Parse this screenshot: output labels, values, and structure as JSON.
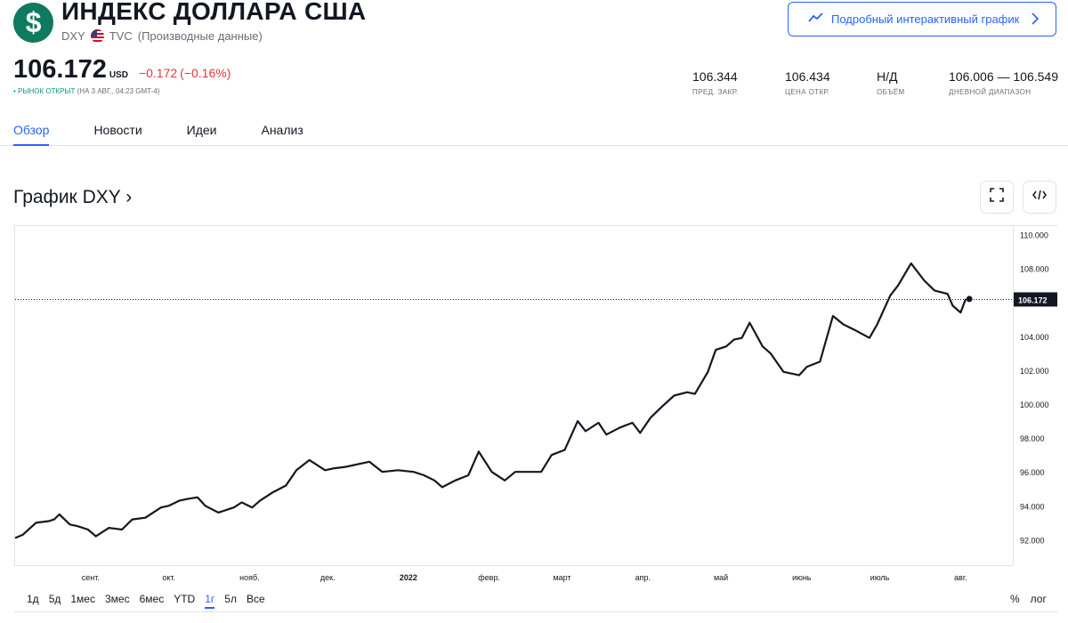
{
  "header": {
    "logo_glyph": "$",
    "title": "ИНДЕКС ДОЛЛАРА США",
    "symbol": "DXY",
    "exchange": "TVC",
    "source_note": "(Производные данные)",
    "cta_label": "Подробный интерактивный график"
  },
  "quote": {
    "price": "106.172",
    "currency": "USD",
    "change": "−0.172",
    "change_pct": "(−0.16%)",
    "market_status": "• РЫНОК ОТКРЫТ",
    "market_time": "(НА 3 АВГ., 04:23 GMT-4)",
    "change_color": "#e13a3a"
  },
  "stats": [
    {
      "value": "106.344",
      "label": "ПРЕД. ЗАКР."
    },
    {
      "value": "106.434",
      "label": "ЦЕНА ОТКР."
    },
    {
      "value": "Н/Д",
      "label": "ОБЪЁМ"
    },
    {
      "value": "106.006 — 106.549",
      "label": "ДНЕВНОЙ ДИАПАЗОН"
    }
  ],
  "tabs": [
    {
      "label": "Обзор",
      "active": true
    },
    {
      "label": "Новости",
      "active": false
    },
    {
      "label": "Идеи",
      "active": false
    },
    {
      "label": "Анализ",
      "active": false
    }
  ],
  "chart_section": {
    "title": "График DXY ›"
  },
  "chart_data": {
    "type": "line",
    "symbol": "DXY",
    "last_value": 106.172,
    "last_value_label": "106.172",
    "ylim": [
      90.5,
      110.5
    ],
    "y_ticks": [
      "110.000",
      "108.000",
      "106.000",
      "104.000",
      "102.000",
      "100.000",
      "98.000",
      "96.000",
      "94.000",
      "92.000"
    ],
    "x_ticks": [
      "сент.",
      "окт.",
      "нояб.",
      "дек.",
      "2022",
      "февр.",
      "март",
      "апр.",
      "май",
      "июнь",
      "июль",
      "авг."
    ],
    "x_tick_dates": [
      "2021-09-01",
      "2021-10-01",
      "2021-11-01",
      "2021-12-01",
      "2022-01-01",
      "2022-02-01",
      "2022-03-01",
      "2022-04-01",
      "2022-05-01",
      "2022-06-01",
      "2022-07-01",
      "2022-08-01"
    ],
    "series": [
      {
        "line_color": "#131722",
        "points": [
          [
            "2021-08-03",
            92.1
          ],
          [
            "2021-08-06",
            92.3
          ],
          [
            "2021-08-11",
            93.0
          ],
          [
            "2021-08-16",
            93.1
          ],
          [
            "2021-08-18",
            93.2
          ],
          [
            "2021-08-20",
            93.5
          ],
          [
            "2021-08-24",
            92.9
          ],
          [
            "2021-08-27",
            92.8
          ],
          [
            "2021-08-31",
            92.6
          ],
          [
            "2021-09-03",
            92.2
          ],
          [
            "2021-09-08",
            92.7
          ],
          [
            "2021-09-13",
            92.6
          ],
          [
            "2021-09-17",
            93.2
          ],
          [
            "2021-09-22",
            93.3
          ],
          [
            "2021-09-28",
            93.9
          ],
          [
            "2021-10-01",
            94.0
          ],
          [
            "2021-10-05",
            94.3
          ],
          [
            "2021-10-08",
            94.4
          ],
          [
            "2021-10-12",
            94.5
          ],
          [
            "2021-10-15",
            94.0
          ],
          [
            "2021-10-20",
            93.6
          ],
          [
            "2021-10-26",
            93.9
          ],
          [
            "2021-10-29",
            94.2
          ],
          [
            "2021-11-02",
            93.9
          ],
          [
            "2021-11-05",
            94.3
          ],
          [
            "2021-11-10",
            94.8
          ],
          [
            "2021-11-15",
            95.2
          ],
          [
            "2021-11-19",
            96.1
          ],
          [
            "2021-11-24",
            96.7
          ],
          [
            "2021-11-30",
            96.1
          ],
          [
            "2021-12-03",
            96.2
          ],
          [
            "2021-12-08",
            96.3
          ],
          [
            "2021-12-14",
            96.5
          ],
          [
            "2021-12-17",
            96.6
          ],
          [
            "2021-12-22",
            96.0
          ],
          [
            "2021-12-28",
            96.1
          ],
          [
            "2022-01-03",
            96.0
          ],
          [
            "2022-01-07",
            95.8
          ],
          [
            "2022-01-11",
            95.5
          ],
          [
            "2022-01-14",
            95.1
          ],
          [
            "2022-01-19",
            95.5
          ],
          [
            "2022-01-24",
            95.8
          ],
          [
            "2022-01-28",
            97.2
          ],
          [
            "2022-02-02",
            96.0
          ],
          [
            "2022-02-07",
            95.5
          ],
          [
            "2022-02-11",
            96.0
          ],
          [
            "2022-02-16",
            96.0
          ],
          [
            "2022-02-21",
            96.0
          ],
          [
            "2022-02-25",
            97.0
          ],
          [
            "2022-03-02",
            97.3
          ],
          [
            "2022-03-07",
            99.0
          ],
          [
            "2022-03-10",
            98.4
          ],
          [
            "2022-03-15",
            98.9
          ],
          [
            "2022-03-18",
            98.2
          ],
          [
            "2022-03-23",
            98.6
          ],
          [
            "2022-03-28",
            98.9
          ],
          [
            "2022-03-31",
            98.3
          ],
          [
            "2022-04-04",
            99.2
          ],
          [
            "2022-04-08",
            99.8
          ],
          [
            "2022-04-13",
            100.5
          ],
          [
            "2022-04-18",
            100.7
          ],
          [
            "2022-04-21",
            100.6
          ],
          [
            "2022-04-26",
            101.9
          ],
          [
            "2022-04-29",
            103.2
          ],
          [
            "2022-05-03",
            103.4
          ],
          [
            "2022-05-06",
            103.8
          ],
          [
            "2022-05-09",
            103.9
          ],
          [
            "2022-05-12",
            104.8
          ],
          [
            "2022-05-17",
            103.4
          ],
          [
            "2022-05-20",
            103.0
          ],
          [
            "2022-05-25",
            101.9
          ],
          [
            "2022-05-31",
            101.7
          ],
          [
            "2022-06-03",
            102.2
          ],
          [
            "2022-06-08",
            102.5
          ],
          [
            "2022-06-13",
            105.2
          ],
          [
            "2022-06-17",
            104.7
          ],
          [
            "2022-06-21",
            104.4
          ],
          [
            "2022-06-27",
            103.9
          ],
          [
            "2022-06-30",
            104.7
          ],
          [
            "2022-07-05",
            106.4
          ],
          [
            "2022-07-08",
            107.0
          ],
          [
            "2022-07-13",
            108.3
          ],
          [
            "2022-07-18",
            107.3
          ],
          [
            "2022-07-22",
            106.7
          ],
          [
            "2022-07-27",
            106.5
          ],
          [
            "2022-07-29",
            105.8
          ],
          [
            "2022-08-01",
            105.4
          ],
          [
            "2022-08-03",
            106.2
          ]
        ]
      }
    ]
  },
  "range_buttons": [
    "1д",
    "5д",
    "1мес",
    "3мес",
    "6мес",
    "YTD",
    "1г",
    "5л",
    "Все"
  ],
  "range_selected": "1г",
  "scale_options": [
    "%",
    "лог"
  ],
  "colors": {
    "accent": "#2962ff",
    "logo_bg": "#0f7a5f",
    "negative": "#e13a3a",
    "market_open": "#089981",
    "price_label_bg": "#131722"
  }
}
